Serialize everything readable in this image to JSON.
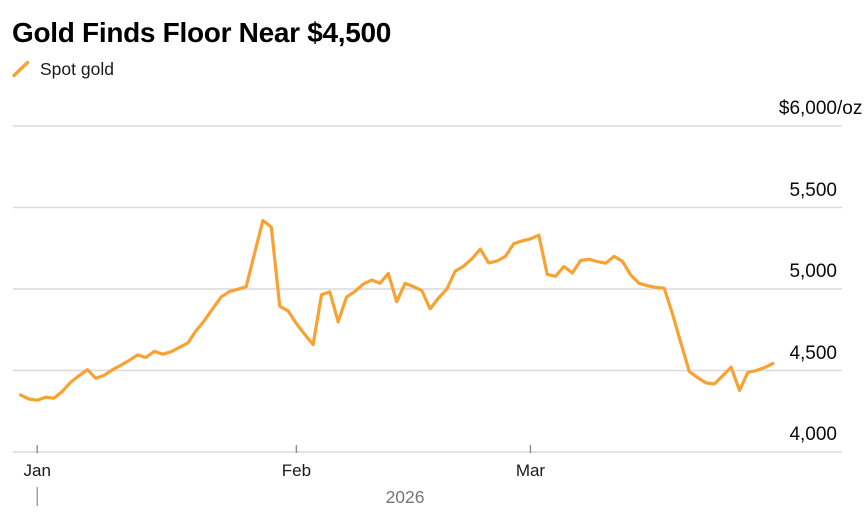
{
  "chart": {
    "title": "Gold Finds Floor Near $4,500",
    "legend": [
      {
        "label": "Spot gold",
        "marker": "line-slash-icon",
        "color": "#F7A232"
      }
    ]
  },
  "colors": {
    "line": "#F7A232",
    "grid": "#DADADA",
    "tick": "#8C8C8C",
    "year_bar": "#9A9A9A",
    "text": "#0A0A0A",
    "secondary_text": "#757575"
  },
  "chart_data": {
    "type": "line",
    "title": "Gold Finds Floor Near $4,500",
    "unit": "$/oz",
    "grid": "horizontal",
    "legend_position": "top-left",
    "x_axis": {
      "start_date": "2025-12-30",
      "end_date": "2026-03-30",
      "interval": "daily",
      "tick_labels": [
        "Jan",
        "Feb",
        "Mar"
      ],
      "tick_day_offsets": [
        2,
        33,
        61
      ],
      "year_label": "2026"
    },
    "y_axis": {
      "ticks": [
        4000,
        4500,
        5000,
        5500,
        6000
      ],
      "tick_labels": [
        "4,000",
        "4,500",
        "5,000",
        "5,500",
        "$6,000"
      ],
      "top_tick_suffix": "/oz",
      "range": [
        4000,
        6000
      ]
    },
    "series": [
      {
        "name": "Spot gold",
        "color": "#F7A232",
        "values": [
          4350,
          4325,
          4318,
          4336,
          4330,
          4372,
          4428,
          4468,
          4505,
          4452,
          4470,
          4505,
          4532,
          4562,
          4596,
          4580,
          4618,
          4600,
          4615,
          4642,
          4668,
          4745,
          4806,
          4880,
          4950,
          4985,
          4998,
          5015,
          5220,
          5420,
          5380,
          4895,
          4866,
          4788,
          4722,
          4658,
          4965,
          4982,
          4798,
          4950,
          4985,
          5030,
          5055,
          5035,
          5095,
          4922,
          5035,
          5015,
          4990,
          4878,
          4945,
          5000,
          5110,
          5140,
          5185,
          5245,
          5160,
          5172,
          5200,
          5278,
          5295,
          5308,
          5330,
          5090,
          5078,
          5138,
          5098,
          5175,
          5183,
          5168,
          5158,
          5200,
          5170,
          5085,
          5035,
          5020,
          5010,
          5005,
          4845,
          4668,
          4494,
          4456,
          4424,
          4418,
          4468,
          4520,
          4378,
          4488,
          4500,
          4518,
          4543
        ]
      }
    ]
  }
}
